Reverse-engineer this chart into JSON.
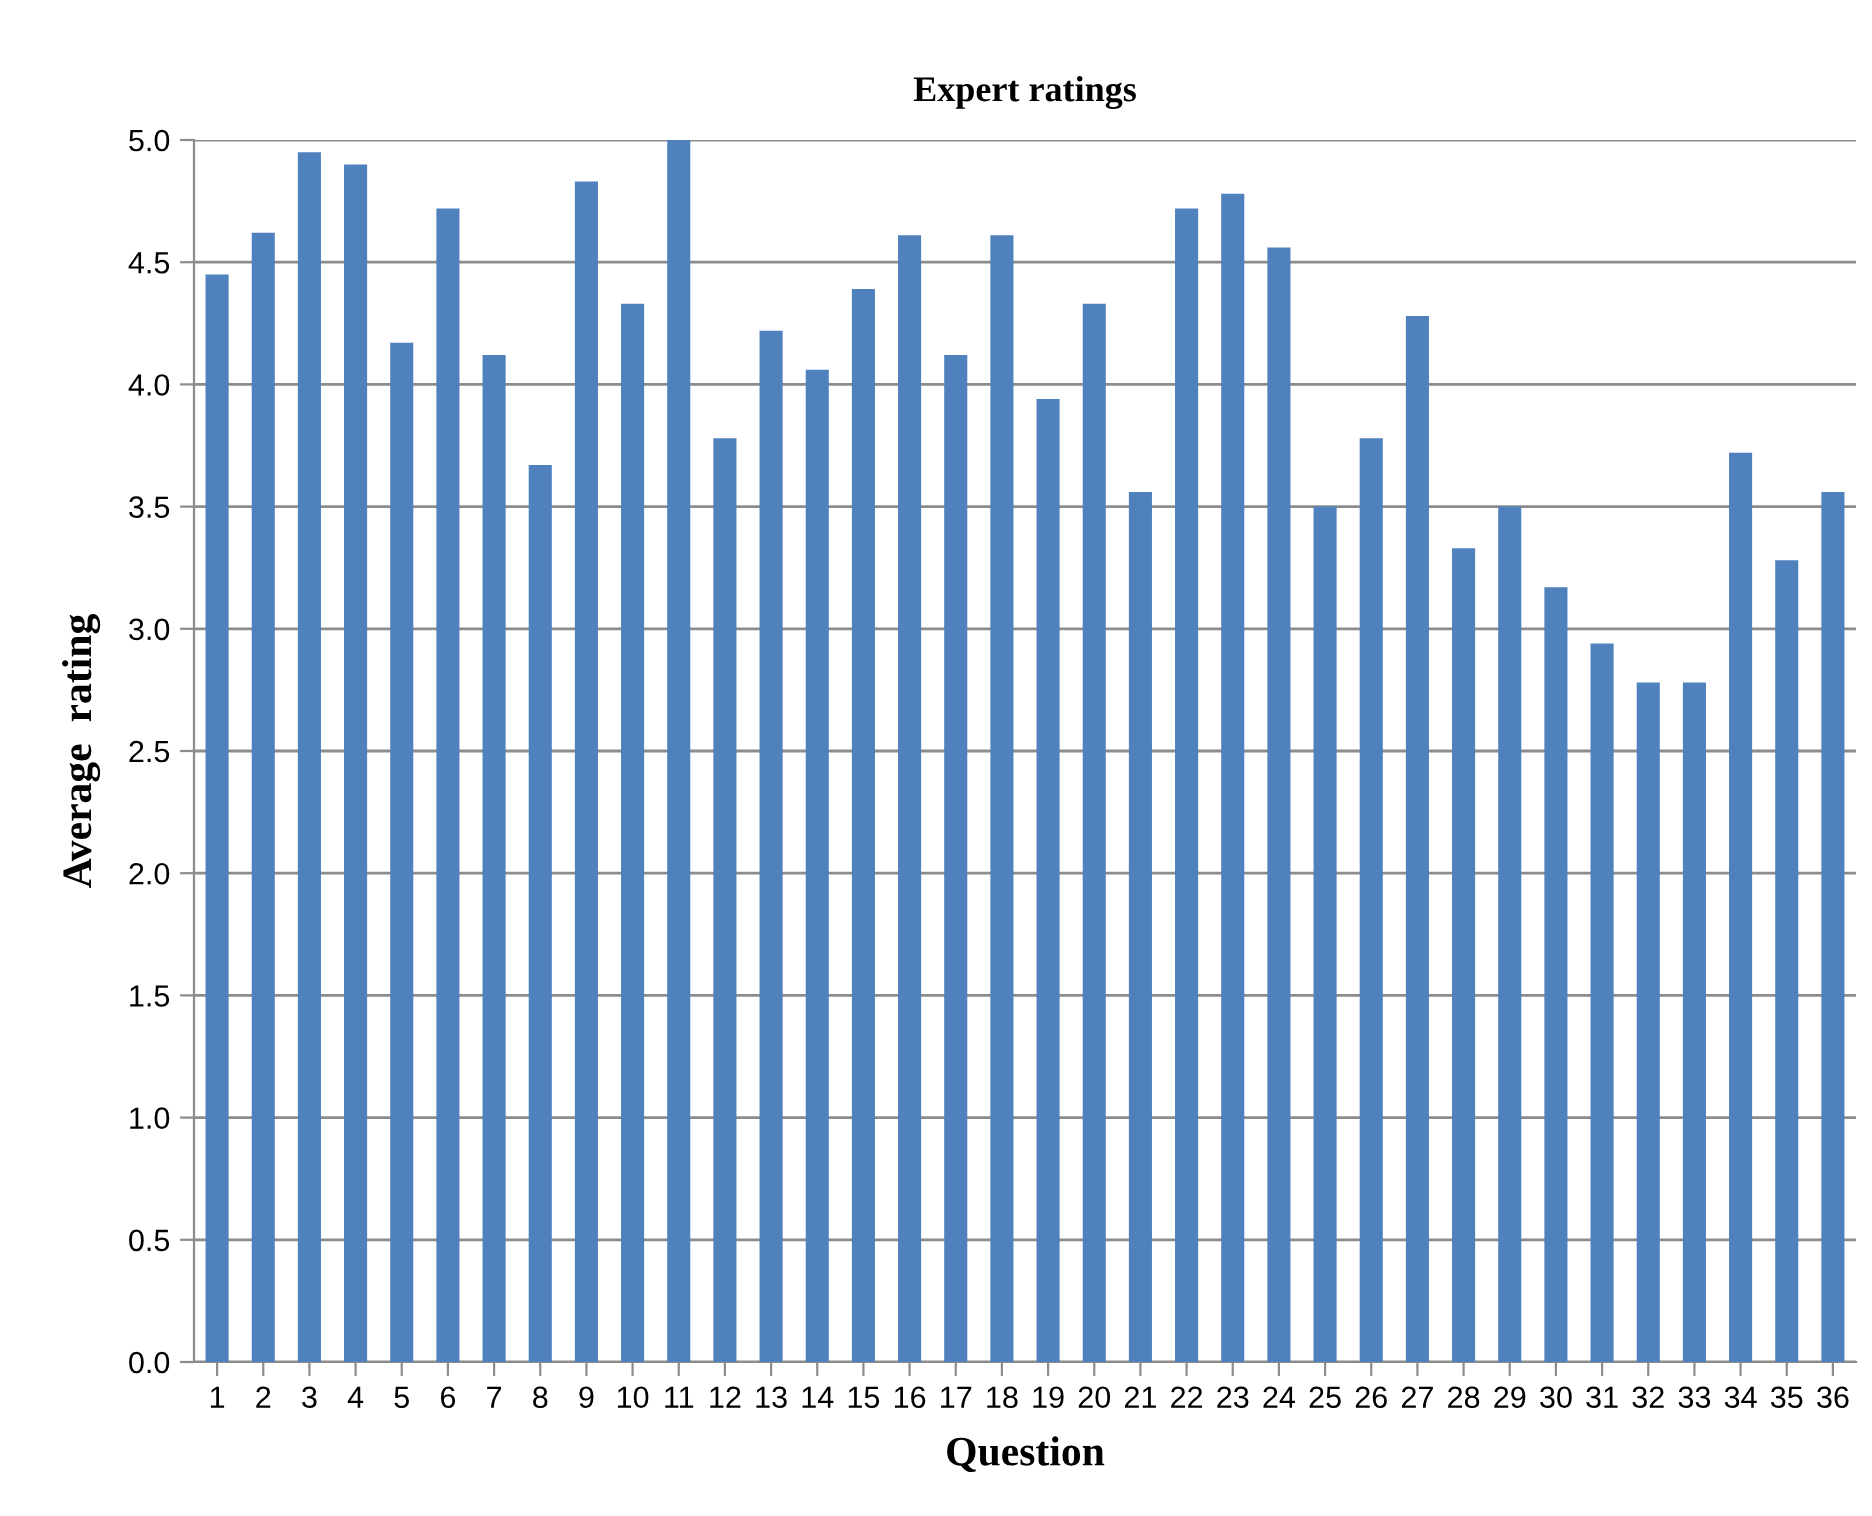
{
  "chart_data": {
    "type": "bar",
    "title": "Expert ratings",
    "xlabel": "Question",
    "ylabel": "Average  rating",
    "categories": [
      "1",
      "2",
      "3",
      "4",
      "5",
      "6",
      "7",
      "8",
      "9",
      "10",
      "11",
      "12",
      "13",
      "14",
      "15",
      "16",
      "17",
      "18",
      "19",
      "20",
      "21",
      "22",
      "23",
      "24",
      "25",
      "26",
      "27",
      "28",
      "29",
      "30",
      "31",
      "32",
      "33",
      "34",
      "35",
      "36"
    ],
    "values": [
      4.45,
      4.62,
      4.95,
      4.9,
      4.17,
      4.72,
      4.12,
      3.67,
      4.83,
      4.33,
      5.0,
      3.78,
      4.22,
      4.06,
      4.39,
      4.61,
      4.12,
      4.61,
      3.94,
      4.33,
      3.56,
      4.72,
      4.78,
      4.56,
      3.5,
      3.78,
      4.28,
      3.33,
      3.5,
      3.17,
      2.94,
      2.78,
      2.78,
      3.72,
      3.28,
      3.56
    ],
    "color": "#4f81bd",
    "ylim": [
      0,
      5
    ],
    "yticks": [
      {
        "value": 0,
        "label": "0.0"
      },
      0.5,
      {
        "value": 1,
        "label": "1.0"
      },
      1.5,
      {
        "value": 2,
        "label": "2.0"
      },
      2.5,
      {
        "value": 3,
        "label": "3.0"
      },
      3.5,
      {
        "value": 4,
        "label": "4.0"
      },
      4.5,
      {
        "value": 5,
        "label": "5.0"
      }
    ],
    "grid": "y"
  }
}
